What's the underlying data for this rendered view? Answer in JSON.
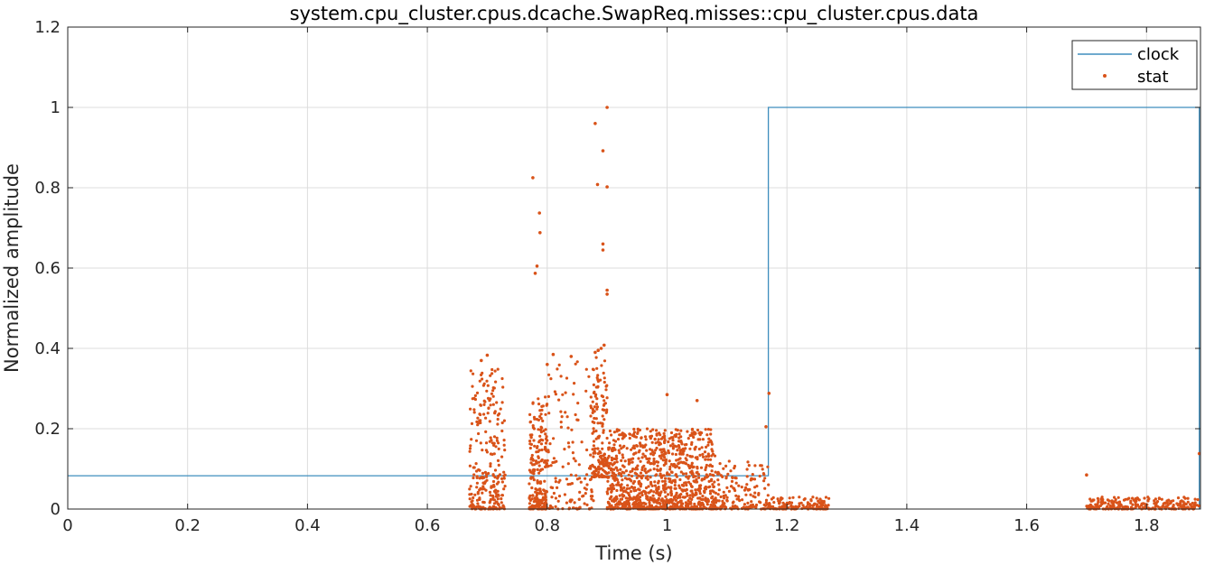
{
  "chart_data": {
    "type": "line",
    "title": "system.cpu_cluster.cpus.dcache.SwapReq.misses::cpu_cluster.cpus.data",
    "xlabel": "Time (s)",
    "ylabel": "Normalized amplitude",
    "xlim": [
      0,
      1.89
    ],
    "ylim": [
      0,
      1.2
    ],
    "x_ticks": [
      0,
      0.2,
      0.4,
      0.6,
      0.8,
      1,
      1.2,
      1.4,
      1.6,
      1.8
    ],
    "x_tick_labels": [
      "0",
      "0.2",
      "0.4",
      "0.6",
      "0.8",
      "1",
      "1.2",
      "1.4",
      "1.6",
      "1.8"
    ],
    "y_ticks": [
      0,
      0.2,
      0.4,
      0.6,
      0.8,
      1,
      1.2
    ],
    "y_tick_labels": [
      "0",
      "0.2",
      "0.4",
      "0.6",
      "0.8",
      "1",
      "1.2"
    ],
    "grid": true,
    "legend": {
      "position": "top-right",
      "entries": [
        {
          "name": "clock",
          "style": "line",
          "color": "#3e8ebd"
        },
        {
          "name": "stat",
          "style": "dot",
          "color": "#d95319"
        }
      ]
    },
    "series": [
      {
        "name": "clock",
        "type": "step",
        "color": "#3e8ebd",
        "points": [
          [
            0,
            0.083
          ],
          [
            1.169,
            0.083
          ],
          [
            1.169,
            1.0
          ],
          [
            1.888,
            1.0
          ],
          [
            1.888,
            0
          ]
        ]
      },
      {
        "name": "stat",
        "type": "scatter",
        "color": "#d95319",
        "points": [
          [
            0.776,
            0.825
          ],
          [
            0.787,
            0.737
          ],
          [
            0.788,
            0.688
          ],
          [
            0.783,
            0.605
          ],
          [
            0.78,
            0.587
          ],
          [
            0.88,
            0.96
          ],
          [
            0.884,
            0.808
          ],
          [
            0.9,
            1.0
          ],
          [
            0.893,
            0.892
          ],
          [
            0.9,
            0.802
          ],
          [
            0.893,
            0.66
          ],
          [
            0.893,
            0.645
          ],
          [
            0.9,
            0.545
          ],
          [
            0.9,
            0.535
          ],
          [
            0.895,
            0.408
          ],
          [
            0.89,
            0.4
          ],
          [
            0.885,
            0.395
          ],
          [
            0.88,
            0.39
          ],
          [
            0.7,
            0.383
          ],
          [
            0.69,
            0.37
          ],
          [
            0.8,
            0.36
          ],
          [
            0.81,
            0.385
          ],
          [
            0.84,
            0.38
          ],
          [
            1.0,
            0.285
          ],
          [
            1.17,
            0.288
          ],
          [
            1.05,
            0.27
          ],
          [
            1.165,
            0.205
          ],
          [
            1.7,
            0.085
          ],
          [
            1.888,
            0.138
          ]
        ],
        "clusters": [
          {
            "x_range": [
              0.67,
              0.73
            ],
            "y_range": [
              0.0,
              0.35
            ],
            "count": 260
          },
          {
            "x_range": [
              0.77,
              0.8
            ],
            "y_range": [
              0.0,
              0.28
            ],
            "count": 220
          },
          {
            "x_range": [
              0.8,
              0.88
            ],
            "y_range": [
              0.0,
              0.39
            ],
            "count": 140
          },
          {
            "x_range": [
              0.875,
              0.9
            ],
            "y_range": [
              0.08,
              0.38
            ],
            "count": 160
          },
          {
            "x_range": [
              0.9,
              1.0
            ],
            "y_range": [
              0.0,
              0.2
            ],
            "count": 600
          },
          {
            "x_range": [
              1.0,
              1.08
            ],
            "y_range": [
              0.0,
              0.2
            ],
            "count": 450
          },
          {
            "x_range": [
              1.08,
              1.17
            ],
            "y_range": [
              0.0,
              0.12
            ],
            "count": 160
          },
          {
            "x_range": [
              1.17,
              1.27
            ],
            "y_range": [
              0.0,
              0.03
            ],
            "count": 140
          },
          {
            "x_range": [
              1.7,
              1.888
            ],
            "y_range": [
              0.0,
              0.03
            ],
            "count": 260
          }
        ]
      }
    ]
  }
}
